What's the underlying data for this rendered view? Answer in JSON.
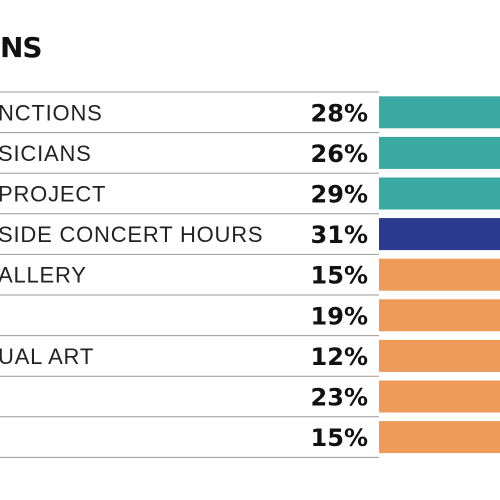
{
  "chart_data": {
    "type": "bar",
    "orientation": "horizontal",
    "title": "NS",
    "categories": [
      "NCTIONS",
      "SICIANS",
      "PROJECT",
      "SIDE CONCERT HOURS",
      "ALLERY",
      "",
      "UAL ART",
      "",
      ""
    ],
    "values": [
      28,
      26,
      29,
      31,
      15,
      19,
      12,
      23,
      15
    ],
    "value_labels": [
      "28%",
      "26%",
      "29%",
      "31%",
      "15%",
      "19%",
      "12%",
      "23%",
      "15%"
    ],
    "bar_colors": [
      "#3aa9a1",
      "#3aa9a1",
      "#3aa9a1",
      "#2a3a8f",
      "#ee9a58",
      "#ee9a58",
      "#ee9a58",
      "#ee9a58",
      "#ee9a58"
    ],
    "grid": false,
    "legend": "none"
  }
}
